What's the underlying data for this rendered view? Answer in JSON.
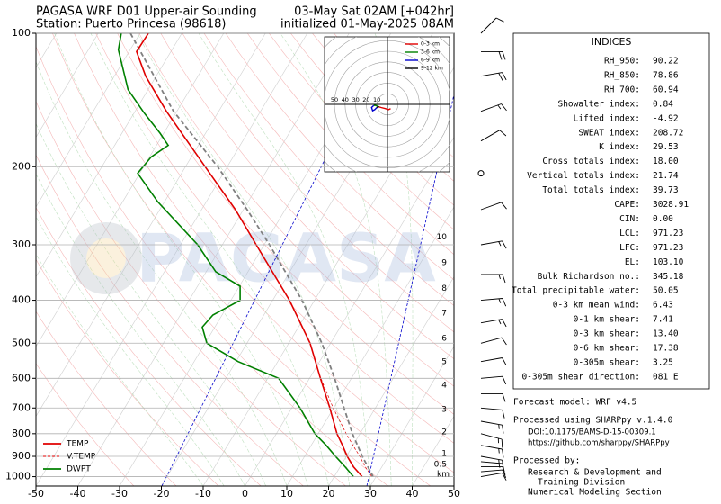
{
  "chart_data": {
    "type": "skewt",
    "title_left": [
      "PAGASA WRF D01 Upper-air Sounding",
      "Station: Puerto Princesa (98618)"
    ],
    "title_right": [
      "03-May Sat 02AM [+042hr]",
      "initialized 01-May-2025 08AM"
    ],
    "watermark": "PAGASA",
    "xlim": [
      -50,
      50
    ],
    "xticks": [
      -50,
      -40,
      -30,
      -20,
      -10,
      0,
      10,
      20,
      30,
      40,
      50
    ],
    "ylim": [
      1050,
      100
    ],
    "yticks": [
      100,
      200,
      300,
      400,
      500,
      600,
      700,
      800,
      900,
      1000
    ],
    "log_scale": true,
    "grid": true,
    "legend": "lower left",
    "series": [
      {
        "name": "TEMP",
        "color": "#e00000",
        "pressure": [
          1000,
          950,
          900,
          850,
          800,
          700,
          600,
          500,
          400,
          300,
          250,
          200,
          150,
          125,
          110,
          100
        ],
        "values": [
          26.7,
          23.2,
          20.2,
          17.5,
          14.5,
          9.1,
          2.6,
          -4.9,
          -16,
          -31.9,
          -41.9,
          -55.3,
          -72.5,
          -82.5,
          -88.2,
          -88
        ]
      },
      {
        "name": "V.TEMP",
        "color": "#e00000",
        "pressure": [
          1000,
          950,
          900,
          850,
          800,
          700,
          600
        ],
        "values": [
          29,
          26,
          23.2,
          20,
          16.7,
          9.9,
          2.7
        ]
      },
      {
        "name": "DWPT",
        "color": "#008000",
        "pressure": [
          1000,
          950,
          900,
          850,
          800,
          700,
          600,
          550,
          500,
          460,
          432,
          400,
          372,
          345,
          300,
          240,
          207,
          190,
          179,
          168,
          151,
          134,
          109,
          100
        ],
        "values": [
          24.6,
          21.2,
          17.4,
          13.6,
          9.2,
          2,
          -7.4,
          -19.5,
          -29.6,
          -33,
          -32.2,
          -27.8,
          -29.8,
          -37.7,
          -45.9,
          -61.6,
          -70.5,
          -69.6,
          -67.2,
          -70.9,
          -77.7,
          -84.8,
          -92.8,
          -94.5
        ]
      }
    ],
    "parcel": {
      "color": "#808080",
      "pressure": [
        1000,
        900,
        800,
        700,
        600,
        500,
        400,
        300,
        250,
        200,
        150,
        100
      ],
      "values": [
        29.3,
        23.8,
        18.2,
        12.5,
        6,
        -2.1,
        -13,
        -28.7,
        -39.1,
        -52.3,
        -70.8,
        -92.3
      ]
    },
    "height_km": {
      "unit": "km",
      "km": [
        0.5,
        1,
        2,
        3,
        4,
        5,
        6,
        7,
        8,
        9,
        10
      ],
      "pressure": [
        938,
        887,
        793,
        706,
        622,
        551,
        488,
        428,
        376,
        329,
        288
      ]
    },
    "wind": {
      "pressure": [
        1000,
        975,
        950,
        925,
        900,
        850,
        800,
        750,
        700,
        650,
        600,
        550,
        500,
        450,
        400,
        350,
        300,
        250,
        207,
        175,
        150,
        125,
        110,
        100
      ],
      "direction": [
        80,
        85,
        90,
        95,
        100,
        100,
        105,
        100,
        95,
        90,
        85,
        80,
        75,
        80,
        85,
        90,
        80,
        70,
        0,
        60,
        70,
        80,
        90,
        45
      ],
      "speed": [
        10,
        10,
        10,
        15,
        15,
        15,
        15,
        15,
        10,
        10,
        10,
        10,
        10,
        15,
        15,
        15,
        15,
        10,
        0,
        10,
        15,
        20,
        20,
        10
      ]
    },
    "hodograph": {
      "ring_labels": [
        10,
        20,
        30,
        40,
        50
      ],
      "segments": [
        {
          "name": "0-3 km",
          "color": "#e00000",
          "u": [
            3,
            1,
            -2,
            -6,
            -9
          ],
          "v": [
            -4,
            -5,
            -4,
            -3,
            -2
          ]
        },
        {
          "name": "3-6 km",
          "color": "#008000",
          "u": [
            -9,
            -11,
            -13
          ],
          "v": [
            -2,
            -1,
            -1
          ]
        },
        {
          "name": "6-9 km",
          "color": "#0000cc",
          "u": [
            -13,
            -15,
            -14,
            -12,
            -10
          ],
          "v": [
            -1,
            -3,
            -6,
            -5,
            -3
          ]
        },
        {
          "name": "9-12 km",
          "color": "#000000",
          "u": [
            -10,
            -8
          ],
          "v": [
            -3,
            -2
          ]
        }
      ]
    }
  },
  "indices": {
    "title": "INDICES",
    "rows": [
      [
        "RH_950:",
        "90.22"
      ],
      [
        "RH_850:",
        "78.86"
      ],
      [
        "RH_700:",
        "60.94"
      ],
      [
        "Showalter index:",
        "0.84"
      ],
      [
        "Lifted index:",
        "-4.92"
      ],
      [
        "SWEAT index:",
        "208.72"
      ],
      [
        "K index:",
        "29.53"
      ],
      [
        "Cross totals index:",
        "18.00"
      ],
      [
        "Vertical totals index:",
        "21.74"
      ],
      [
        "Total totals index:",
        "39.73"
      ],
      [
        "CAPE:",
        "3028.91"
      ],
      [
        "CIN:",
        "0.00"
      ],
      [
        "LCL:",
        "971.23"
      ],
      [
        "LFC:",
        "971.23"
      ],
      [
        "EL:",
        "103.10"
      ],
      [
        "Bulk Richardson no.:",
        "345.18"
      ],
      [
        "Total precipitable water:",
        "50.05"
      ],
      [
        "0-3 km mean wind:",
        "6.43"
      ],
      [
        "0-1 km shear:",
        "7.41"
      ],
      [
        "0-3 km shear:",
        "13.40"
      ],
      [
        "0-6 km shear:",
        "17.38"
      ],
      [
        "0-305m shear:",
        "3.25"
      ],
      [
        "0-305m shear direction:",
        "081 E"
      ]
    ]
  },
  "footer": {
    "lines": [
      "Forecast model: WRF v4.5",
      "Processed using SHARPpy v.1.4.0",
      "DOI:10.1175/BAMS-D-15-00309.1",
      "https://github.com/sharppy/SHARPpy",
      "Processed by:",
      "Research & Development and",
      "Training Division",
      "Numerical Modeling Section"
    ]
  }
}
